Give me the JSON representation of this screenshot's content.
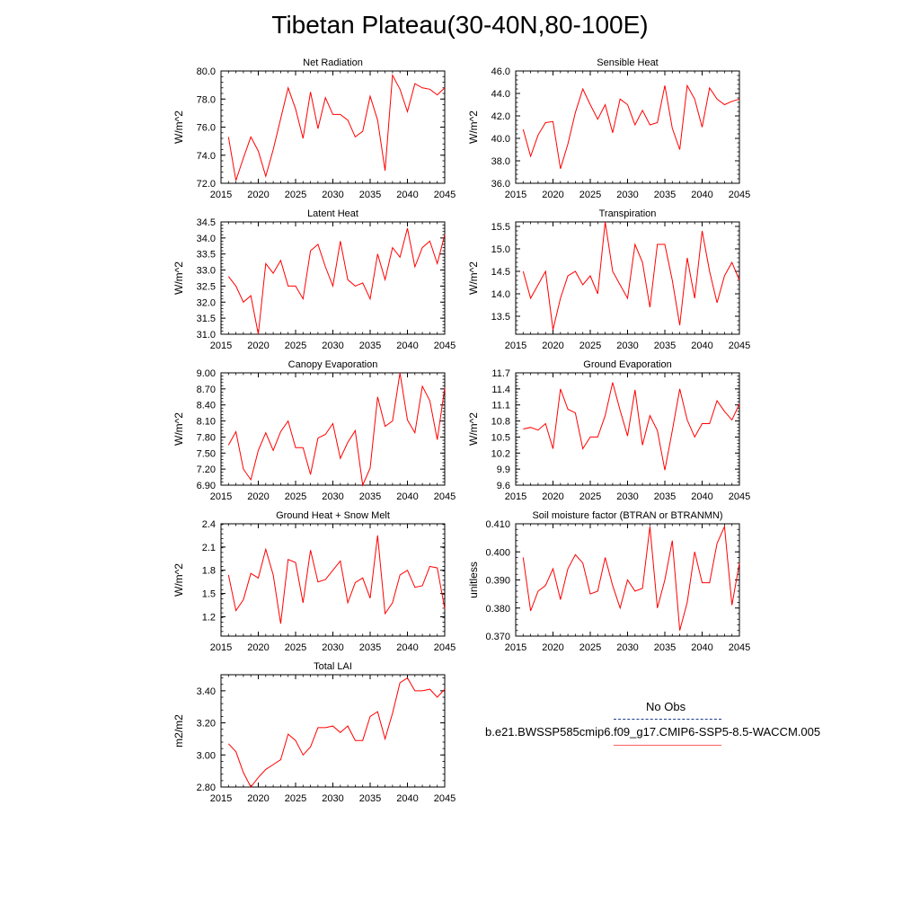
{
  "title": "Tibetan Plateau(30-40N,80-100E)",
  "colors": {
    "line": "#ff0000",
    "axis": "#000000",
    "obs": "#1f3d8c",
    "legend_run": "#ff6060"
  },
  "legend": {
    "obs_label": "No Obs",
    "run_label": "b.e21.BWSSP585cmip6.f09_g17.CMIP6-SSP5-8.5-WACCM.005"
  },
  "chart_data": [
    {
      "type": "line",
      "title": "Net Radiation",
      "ylabel": "W/m^2",
      "xlim": [
        2015,
        2045
      ],
      "ylim": [
        72.0,
        80.0
      ],
      "xticks": [
        2015,
        2020,
        2025,
        2030,
        2035,
        2040,
        2045
      ],
      "yticks": [
        "72.0",
        "74.0",
        "76.0",
        "78.0",
        "80.0"
      ],
      "x": [
        2016,
        2017,
        2018,
        2019,
        2020,
        2021,
        2022,
        2023,
        2024,
        2025,
        2026,
        2027,
        2028,
        2029,
        2030,
        2031,
        2032,
        2033,
        2034,
        2035,
        2036,
        2037,
        2038,
        2039,
        2040,
        2041,
        2042,
        2043,
        2044,
        2045
      ],
      "series": [
        {
          "values": [
            75.3,
            72.2,
            73.8,
            75.3,
            74.3,
            72.5,
            74.4,
            76.6,
            78.8,
            77.3,
            75.2,
            78.5,
            75.9,
            78.1,
            76.9,
            76.9,
            76.5,
            75.3,
            75.7,
            78.2,
            76.5,
            72.9,
            79.7,
            78.7,
            77.1,
            79.1,
            78.8,
            78.7,
            78.3,
            78.8
          ]
        }
      ]
    },
    {
      "type": "line",
      "title": "Sensible Heat",
      "ylabel": "W/m^2",
      "xlim": [
        2015,
        2045
      ],
      "ylim": [
        36.0,
        46.0
      ],
      "xticks": [
        2015,
        2020,
        2025,
        2030,
        2035,
        2040,
        2045
      ],
      "yticks": [
        "36.0",
        "38.0",
        "40.0",
        "42.0",
        "44.0",
        "46.0"
      ],
      "x": [
        2016,
        2017,
        2018,
        2019,
        2020,
        2021,
        2022,
        2023,
        2024,
        2025,
        2026,
        2027,
        2028,
        2029,
        2030,
        2031,
        2032,
        2033,
        2034,
        2035,
        2036,
        2037,
        2038,
        2039,
        2040,
        2041,
        2042,
        2043,
        2044,
        2045
      ],
      "series": [
        {
          "values": [
            40.8,
            38.4,
            40.3,
            41.4,
            41.5,
            37.3,
            39.5,
            42.3,
            44.4,
            43.0,
            41.7,
            43.0,
            40.5,
            43.5,
            43.0,
            41.2,
            42.5,
            41.2,
            41.4,
            44.7,
            40.9,
            39.0,
            44.7,
            43.5,
            41.0,
            44.5,
            43.5,
            43.0,
            43.3,
            43.5
          ]
        }
      ]
    },
    {
      "type": "line",
      "title": "Latent Heat",
      "ylabel": "W/m^2",
      "xlim": [
        2015,
        2045
      ],
      "ylim": [
        31.0,
        34.5
      ],
      "xticks": [
        2015,
        2020,
        2025,
        2030,
        2035,
        2040,
        2045
      ],
      "yticks": [
        "31.0",
        "31.5",
        "32.0",
        "32.5",
        "33.0",
        "33.5",
        "34.0",
        "34.5"
      ],
      "x": [
        2016,
        2017,
        2018,
        2019,
        2020,
        2021,
        2022,
        2023,
        2024,
        2025,
        2026,
        2027,
        2028,
        2029,
        2030,
        2031,
        2032,
        2033,
        2034,
        2035,
        2036,
        2037,
        2038,
        2039,
        2040,
        2041,
        2042,
        2043,
        2044,
        2045
      ],
      "series": [
        {
          "values": [
            32.8,
            32.5,
            32.0,
            32.2,
            31.0,
            33.2,
            32.9,
            33.3,
            32.5,
            32.5,
            32.1,
            33.6,
            33.8,
            33.1,
            32.5,
            33.9,
            32.7,
            32.5,
            32.6,
            32.1,
            33.5,
            32.7,
            33.7,
            33.4,
            34.3,
            33.1,
            33.7,
            33.9,
            33.2,
            34.1
          ]
        }
      ]
    },
    {
      "type": "line",
      "title": "Transpiration",
      "ylabel": "W/m^2",
      "xlim": [
        2015,
        2045
      ],
      "ylim": [
        13.1,
        15.6
      ],
      "xticks": [
        2015,
        2020,
        2025,
        2030,
        2035,
        2040,
        2045
      ],
      "yticks": [
        "13.5",
        "14.0",
        "14.5",
        "15.0",
        "15.5"
      ],
      "x": [
        2016,
        2017,
        2018,
        2019,
        2020,
        2021,
        2022,
        2023,
        2024,
        2025,
        2026,
        2027,
        2028,
        2029,
        2030,
        2031,
        2032,
        2033,
        2034,
        2035,
        2036,
        2037,
        2038,
        2039,
        2040,
        2041,
        2042,
        2043,
        2044,
        2045
      ],
      "series": [
        {
          "values": [
            14.5,
            13.9,
            14.2,
            14.5,
            13.2,
            13.9,
            14.4,
            14.5,
            14.2,
            14.4,
            14.0,
            15.6,
            14.5,
            14.2,
            13.9,
            15.1,
            14.7,
            13.7,
            15.1,
            15.1,
            14.3,
            13.3,
            14.8,
            13.9,
            15.4,
            14.5,
            13.8,
            14.4,
            14.7,
            14.3
          ]
        }
      ]
    },
    {
      "type": "line",
      "title": "Canopy Evaporation",
      "ylabel": "W/m^2",
      "xlim": [
        2015,
        2045
      ],
      "ylim": [
        6.9,
        9.0
      ],
      "xticks": [
        2015,
        2020,
        2025,
        2030,
        2035,
        2040,
        2045
      ],
      "yticks": [
        "6.90",
        "7.20",
        "7.50",
        "7.80",
        "8.10",
        "8.40",
        "8.70",
        "9.00"
      ],
      "x": [
        2016,
        2017,
        2018,
        2019,
        2020,
        2021,
        2022,
        2023,
        2024,
        2025,
        2026,
        2027,
        2028,
        2029,
        2030,
        2031,
        2032,
        2033,
        2034,
        2035,
        2036,
        2037,
        2038,
        2039,
        2040,
        2041,
        2042,
        2043,
        2044,
        2045
      ],
      "series": [
        {
          "values": [
            7.65,
            7.9,
            7.2,
            7.0,
            7.55,
            7.88,
            7.55,
            7.9,
            8.1,
            7.6,
            7.6,
            7.1,
            7.78,
            7.85,
            8.05,
            7.4,
            7.7,
            7.92,
            6.9,
            7.22,
            8.55,
            8.0,
            8.1,
            9.0,
            8.12,
            7.88,
            8.75,
            8.48,
            7.75,
            8.72
          ]
        }
      ]
    },
    {
      "type": "line",
      "title": "Ground Evaporation",
      "ylabel": "W/m^2",
      "xlim": [
        2015,
        2045
      ],
      "ylim": [
        9.6,
        11.7
      ],
      "xticks": [
        2015,
        2020,
        2025,
        2030,
        2035,
        2040,
        2045
      ],
      "yticks": [
        "9.6",
        "9.9",
        "10.2",
        "10.5",
        "10.8",
        "11.1",
        "11.4",
        "11.7"
      ],
      "x": [
        2016,
        2017,
        2018,
        2019,
        2020,
        2021,
        2022,
        2023,
        2024,
        2025,
        2026,
        2027,
        2028,
        2029,
        2030,
        2031,
        2032,
        2033,
        2034,
        2035,
        2036,
        2037,
        2038,
        2039,
        2040,
        2041,
        2042,
        2043,
        2044,
        2045
      ],
      "series": [
        {
          "values": [
            10.65,
            10.68,
            10.63,
            10.75,
            10.28,
            11.4,
            11.02,
            10.95,
            10.28,
            10.5,
            10.5,
            10.9,
            11.52,
            11.0,
            10.52,
            11.38,
            10.35,
            10.9,
            10.62,
            9.88,
            10.62,
            11.4,
            10.82,
            10.5,
            10.75,
            10.75,
            11.18,
            10.98,
            10.82,
            11.12
          ]
        }
      ]
    },
    {
      "type": "line",
      "title": "Ground Heat + Snow Melt",
      "ylabel": "W/m^2",
      "xlim": [
        2015,
        2045
      ],
      "ylim": [
        0.95,
        2.4
      ],
      "xticks": [
        2015,
        2020,
        2025,
        2030,
        2035,
        2040,
        2045
      ],
      "yticks": [
        "1.2",
        "1.5",
        "1.8",
        "2.1",
        "2.4"
      ],
      "x": [
        2016,
        2017,
        2018,
        2019,
        2020,
        2021,
        2022,
        2023,
        2024,
        2025,
        2026,
        2027,
        2028,
        2029,
        2030,
        2031,
        2032,
        2033,
        2034,
        2035,
        2036,
        2037,
        2038,
        2039,
        2040,
        2041,
        2042,
        2043,
        2044,
        2045
      ],
      "series": [
        {
          "values": [
            1.74,
            1.28,
            1.42,
            1.76,
            1.7,
            2.07,
            1.74,
            1.11,
            1.94,
            1.9,
            1.38,
            2.06,
            1.65,
            1.68,
            1.8,
            1.92,
            1.38,
            1.64,
            1.7,
            1.44,
            2.25,
            1.24,
            1.38,
            1.74,
            1.8,
            1.58,
            1.6,
            1.85,
            1.83,
            1.3
          ]
        }
      ]
    },
    {
      "type": "line",
      "title": "Soil moisture factor (BTRAN or BTRANMN)",
      "ylabel": "unitless",
      "xlim": [
        2015,
        2045
      ],
      "ylim": [
        0.37,
        0.41
      ],
      "xticks": [
        2015,
        2020,
        2025,
        2030,
        2035,
        2040,
        2045
      ],
      "yticks": [
        "0.370",
        "0.380",
        "0.390",
        "0.400",
        "0.410"
      ],
      "x": [
        2016,
        2017,
        2018,
        2019,
        2020,
        2021,
        2022,
        2023,
        2024,
        2025,
        2026,
        2027,
        2028,
        2029,
        2030,
        2031,
        2032,
        2033,
        2034,
        2035,
        2036,
        2037,
        2038,
        2039,
        2040,
        2041,
        2042,
        2043,
        2044,
        2045
      ],
      "series": [
        {
          "values": [
            0.398,
            0.379,
            0.386,
            0.388,
            0.394,
            0.383,
            0.394,
            0.399,
            0.396,
            0.385,
            0.386,
            0.398,
            0.388,
            0.38,
            0.39,
            0.386,
            0.387,
            0.409,
            0.38,
            0.39,
            0.404,
            0.372,
            0.382,
            0.4,
            0.389,
            0.389,
            0.403,
            0.409,
            0.381,
            0.396
          ]
        }
      ]
    },
    {
      "type": "line",
      "title": "Total LAI",
      "ylabel": "m2/m2",
      "xlim": [
        2015,
        2045
      ],
      "ylim": [
        2.8,
        3.5
      ],
      "xticks": [
        2015,
        2020,
        2025,
        2030,
        2035,
        2040,
        2045
      ],
      "yticks": [
        "2.80",
        "3.00",
        "3.20",
        "3.40"
      ],
      "x": [
        2016,
        2017,
        2018,
        2019,
        2020,
        2021,
        2022,
        2023,
        2024,
        2025,
        2026,
        2027,
        2028,
        2029,
        2030,
        2031,
        2032,
        2033,
        2034,
        2035,
        2036,
        2037,
        2038,
        2039,
        2040,
        2041,
        2042,
        2043,
        2044,
        2045
      ],
      "series": [
        {
          "values": [
            3.07,
            3.02,
            2.89,
            2.8,
            2.86,
            2.91,
            2.94,
            2.97,
            3.13,
            3.09,
            3.0,
            3.05,
            3.17,
            3.17,
            3.18,
            3.14,
            3.18,
            3.09,
            3.09,
            3.24,
            3.27,
            3.1,
            3.26,
            3.45,
            3.48,
            3.4,
            3.4,
            3.41,
            3.36,
            3.41
          ]
        }
      ]
    }
  ]
}
